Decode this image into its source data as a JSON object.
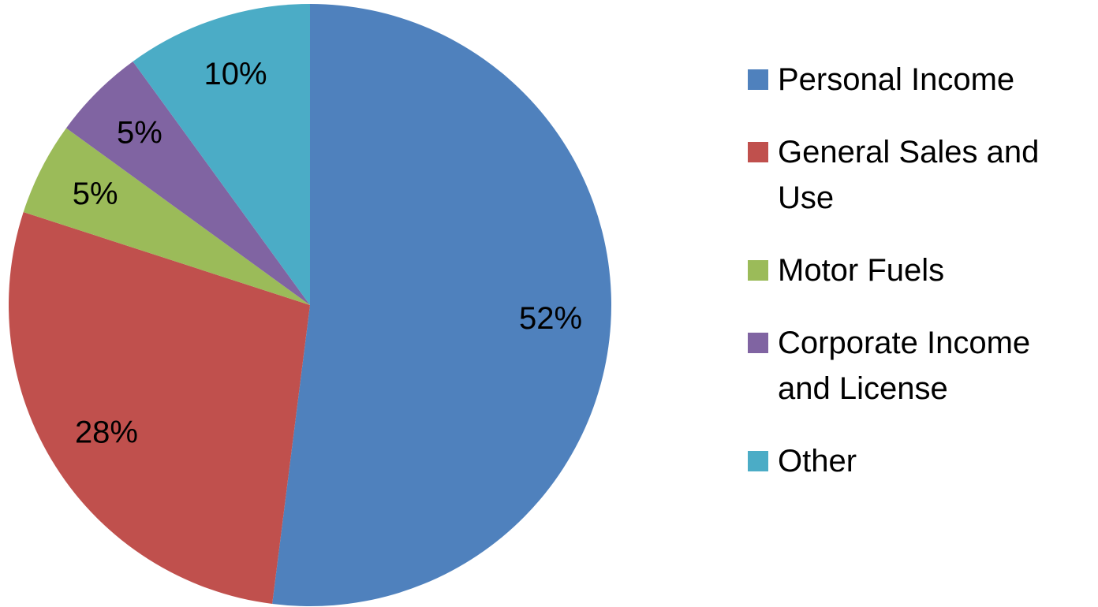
{
  "chart_data": {
    "type": "pie",
    "categories": [
      "Personal Income",
      "General Sales and Use",
      "Motor Fuels",
      "Corporate Income and License",
      "Other"
    ],
    "values": [
      52,
      28,
      5,
      5,
      10
    ],
    "value_labels": [
      "52%",
      "28%",
      "5%",
      "5%",
      "10%"
    ],
    "colors": [
      "#4f81bd",
      "#c0504d",
      "#9bbb59",
      "#8064a2",
      "#4bacc6"
    ],
    "legend": "right"
  }
}
